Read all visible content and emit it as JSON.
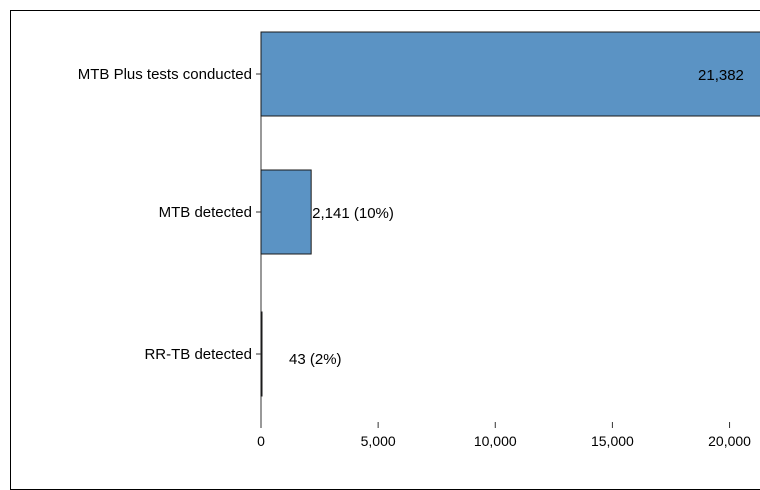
{
  "chart_data": {
    "type": "bar",
    "orientation": "horizontal",
    "categories": [
      "MTB Plus tests conducted",
      "MTB detected",
      "RR-TB detected"
    ],
    "values": [
      21382,
      2141,
      43
    ],
    "data_labels": [
      "21,382",
      "2,141 (10%)",
      "43 (2%)"
    ],
    "xlim": [
      0,
      21300
    ],
    "xticks": [
      0,
      5000,
      10000,
      15000,
      20000
    ],
    "xtick_labels": [
      "0",
      "5,000",
      "10,000",
      "15,000",
      "20,000"
    ],
    "grid": false,
    "legend": "none",
    "colors": {
      "bar": "#5b93c4",
      "bar_edge": "#1a1a1a"
    }
  }
}
